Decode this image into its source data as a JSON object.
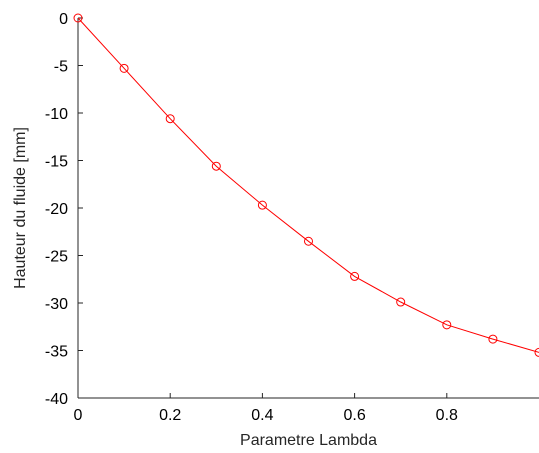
{
  "chart_data": {
    "type": "line",
    "title": "",
    "xlabel": "Parametre Lambda",
    "ylabel": "Hauteur du fluide [mm]",
    "xlim": [
      0,
      1
    ],
    "ylim": [
      -40,
      0
    ],
    "x_ticks": [
      0,
      0.2,
      0.4,
      0.6,
      0.8
    ],
    "x_tick_labels": [
      "0",
      "0.2",
      "0.4",
      "0.6",
      "0.8"
    ],
    "y_ticks": [
      0,
      -5,
      -10,
      -15,
      -20,
      -25,
      -30,
      -35,
      -40
    ],
    "y_tick_labels": [
      "0",
      "-5",
      "-10",
      "-15",
      "-20",
      "-25",
      "-30",
      "-35",
      "-40"
    ],
    "grid": false,
    "legend": "none",
    "series": [
      {
        "color": "#ff0000",
        "marker": "circle",
        "x": [
          0,
          0.1,
          0.2,
          0.3,
          0.4,
          0.5,
          0.6,
          0.7,
          0.8,
          0.9,
          1.0
        ],
        "y": [
          0,
          -5.3,
          -10.6,
          -15.6,
          -19.7,
          -23.5,
          -27.2,
          -29.9,
          -32.3,
          -33.8,
          -35.2
        ]
      }
    ]
  }
}
